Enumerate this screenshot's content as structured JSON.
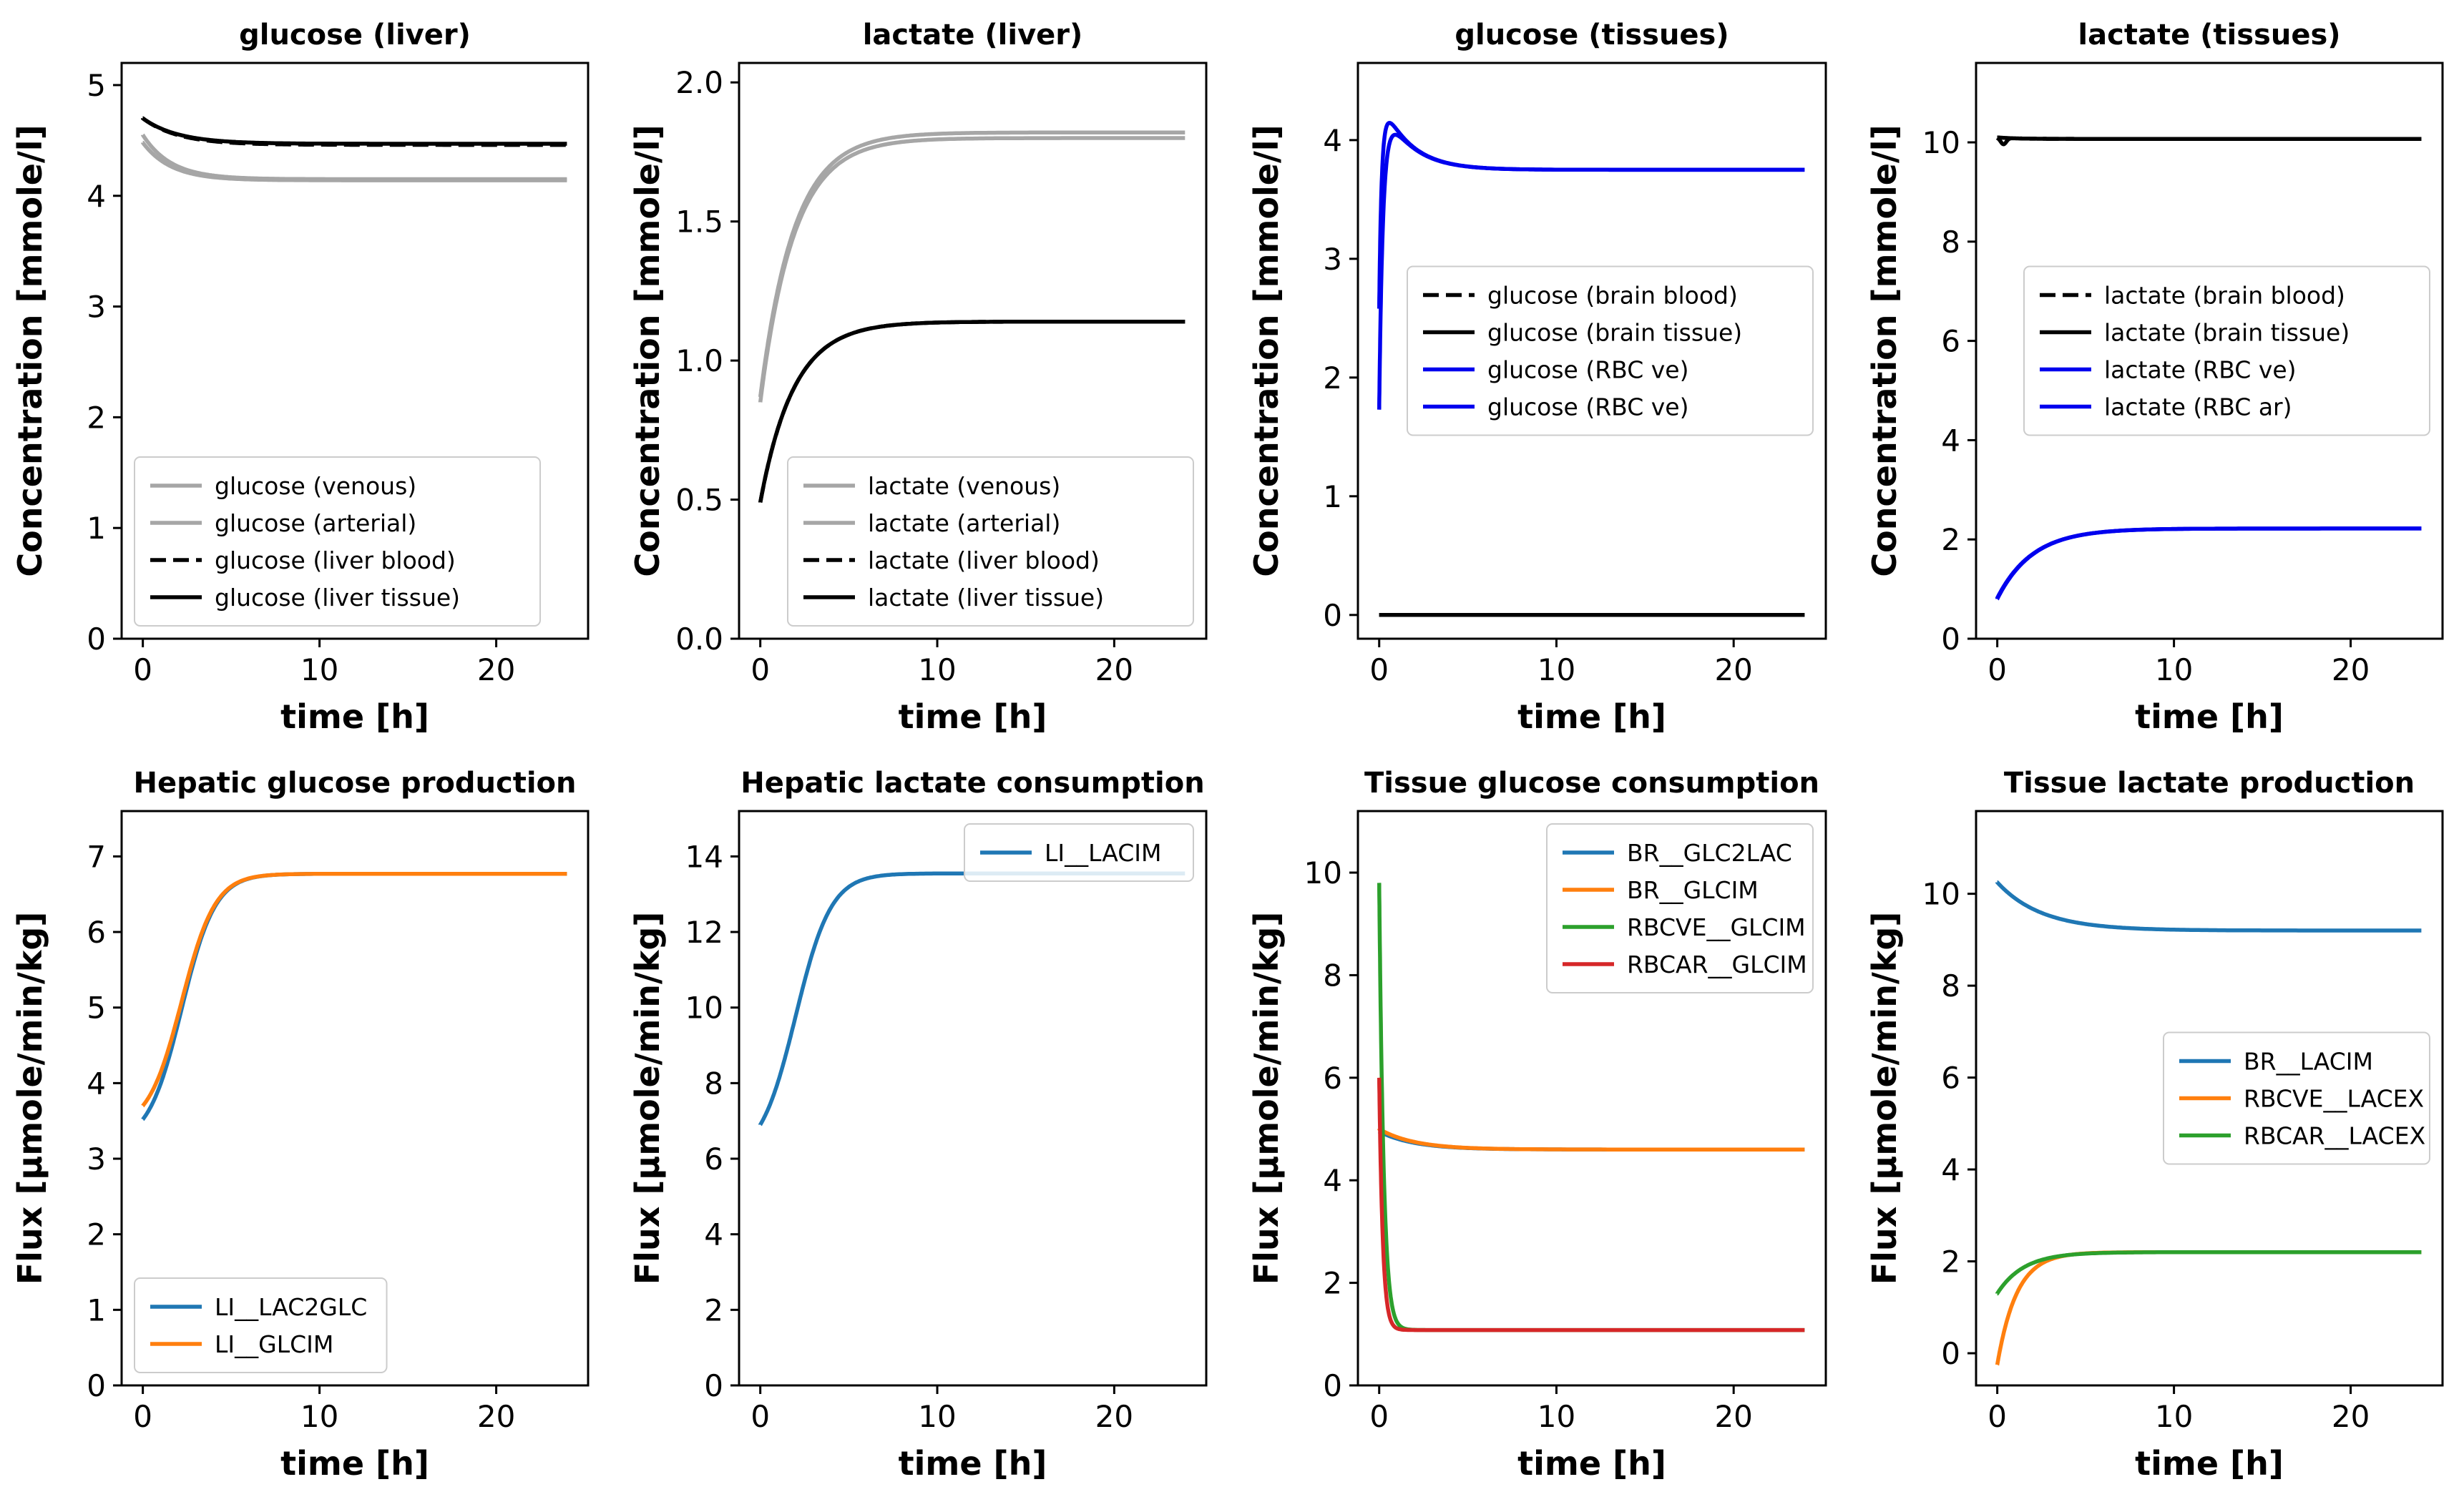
{
  "colors": {
    "gray": "#a6a6a6",
    "black": "#000000",
    "blue": "#0000ee",
    "c_blue": "#1f77b4",
    "c_orange": "#ff7f0e",
    "c_green": "#2ca02c",
    "c_red": "#d62728"
  },
  "chart_data": [
    {
      "type": "line",
      "title": "glucose (liver)",
      "xlabel": "time [h]",
      "ylabel": "Concentration [mmole/l]",
      "xlim": [
        -1.2,
        25.2
      ],
      "ylim": [
        0,
        5.2
      ],
      "xticks": [
        0,
        10,
        20
      ],
      "yticks": [
        0,
        1,
        2,
        3,
        4,
        5
      ],
      "ytick_labels": [
        "0",
        "1",
        "2",
        "3",
        "4",
        "5"
      ],
      "legend_position": "lower-left",
      "series": [
        {
          "name": "glucose (venous)",
          "color": "#a6a6a6",
          "dash": false,
          "start": 4.48,
          "end": 4.14,
          "tau": 1.6
        },
        {
          "name": "glucose (arterial)",
          "color": "#a6a6a6",
          "dash": false,
          "start": 4.55,
          "end": 4.15,
          "tau": 1.6
        },
        {
          "name": "glucose (liver blood)",
          "color": "#000000",
          "dash": true,
          "start": 4.7,
          "end": 4.46,
          "tau": 2.0
        },
        {
          "name": "glucose (liver tissue)",
          "color": "#000000",
          "dash": false,
          "start": 4.7,
          "end": 4.47,
          "tau": 2.0
        }
      ]
    },
    {
      "type": "line",
      "title": "lactate (liver)",
      "xlabel": "time [h]",
      "ylabel": "Concentration [mmole/l]",
      "xlim": [
        -1.2,
        25.2
      ],
      "ylim": [
        0,
        2.07
      ],
      "xticks": [
        0,
        10,
        20
      ],
      "yticks": [
        0,
        0.5,
        1.0,
        1.5,
        2.0
      ],
      "ytick_labels": [
        "0.0",
        "0.5",
        "1.0",
        "1.5",
        "2.0"
      ],
      "legend_position": "lower-right",
      "series": [
        {
          "name": "lactate (venous)",
          "color": "#a6a6a6",
          "dash": false,
          "start": 0.85,
          "end": 1.8,
          "tau": 1.9
        },
        {
          "name": "lactate (arterial)",
          "color": "#a6a6a6",
          "dash": false,
          "start": 0.87,
          "end": 1.82,
          "tau": 1.9
        },
        {
          "name": "lactate (liver blood)",
          "color": "#000000",
          "dash": true,
          "start": 0.49,
          "end": 1.14,
          "tau": 1.9
        },
        {
          "name": "lactate (liver tissue)",
          "color": "#000000",
          "dash": false,
          "start": 0.49,
          "end": 1.14,
          "tau": 1.9
        }
      ]
    },
    {
      "type": "line",
      "title": "glucose (tissues)",
      "xlabel": "time [h]",
      "ylabel": "Concentration [mmole/l]",
      "xlim": [
        -1.2,
        25.2
      ],
      "ylim": [
        -0.2,
        4.65
      ],
      "xticks": [
        0,
        10,
        20
      ],
      "yticks": [
        0,
        1,
        2,
        3,
        4
      ],
      "ytick_labels": [
        "0",
        "1",
        "2",
        "3",
        "4"
      ],
      "legend_position": "center-right",
      "series": [
        {
          "name": "glucose (brain blood)",
          "color": "#000000",
          "dash": true,
          "start": 0.0,
          "end": 0.0,
          "tau": 1.0
        },
        {
          "name": "glucose (brain tissue)",
          "color": "#000000",
          "dash": false,
          "start": 0.0,
          "end": 0.0,
          "tau": 1.0
        },
        {
          "name": "glucose (RBC ve)",
          "color": "#0000ee",
          "dash": false,
          "start": 1.73,
          "end": 3.75,
          "tau": 0.25,
          "bump": 0.28,
          "bump_tau": 1.6
        },
        {
          "name": "glucose (RBC ve)",
          "color": "#0000ee",
          "dash": false,
          "start": 2.58,
          "end": 3.75,
          "tau": 0.18,
          "bump": 0.29,
          "bump_tau": 1.6
        }
      ]
    },
    {
      "type": "line",
      "title": "lactate (tissues)",
      "xlabel": "time [h]",
      "ylabel": "Concentration [mmole/l]",
      "xlim": [
        -1.2,
        25.2
      ],
      "ylim": [
        0,
        11.6
      ],
      "xticks": [
        0,
        10,
        20
      ],
      "yticks": [
        0,
        2,
        4,
        6,
        8,
        10
      ],
      "ytick_labels": [
        "0",
        "2",
        "4",
        "6",
        "8",
        "10"
      ],
      "legend_position": "center-right",
      "series": [
        {
          "name": "lactate (brain blood)",
          "color": "#000000",
          "dash": true,
          "start": 10.1,
          "end": 10.07,
          "tau": 1.0
        },
        {
          "name": "lactate (brain tissue)",
          "color": "#000000",
          "dash": false,
          "start": 10.1,
          "end": 10.07,
          "tau": 1.0,
          "dip": 0.13
        },
        {
          "name": "lactate (RBC ve)",
          "color": "#0000ee",
          "dash": false,
          "start": 0.8,
          "end": 2.22,
          "tau": 2.0
        },
        {
          "name": "lactate (RBC ar)",
          "color": "#0000ee",
          "dash": false,
          "start": 0.82,
          "end": 2.22,
          "tau": 2.0
        }
      ]
    },
    {
      "type": "line",
      "title": "Hepatic glucose production",
      "xlabel": "time [h]",
      "ylabel": "Flux [µmole/min/kg]",
      "xlim": [
        -1.2,
        25.2
      ],
      "ylim": [
        0,
        7.6
      ],
      "xticks": [
        0,
        10,
        20
      ],
      "yticks": [
        0,
        1,
        2,
        3,
        4,
        5,
        6,
        7
      ],
      "ytick_labels": [
        "0",
        "1",
        "2",
        "3",
        "4",
        "5",
        "6",
        "7"
      ],
      "legend_position": "lower-left",
      "series": [
        {
          "name": "LI__LAC2GLC",
          "color": "#1f77b4",
          "dash": false,
          "start": 3.52,
          "end": 6.77,
          "tau": 2.0,
          "sig_mid": 2.2,
          "sig_k": 0.95
        },
        {
          "name": "LI__GLCIM",
          "color": "#ff7f0e",
          "dash": false,
          "start": 3.7,
          "end": 6.77,
          "tau": 2.0,
          "sig_mid": 2.2,
          "sig_k": 0.95
        }
      ]
    },
    {
      "type": "line",
      "title": "Hepatic lactate consumption",
      "xlabel": "time [h]",
      "ylabel": "Flux [µmole/min/kg]",
      "xlim": [
        -1.2,
        25.2
      ],
      "ylim": [
        0,
        15.2
      ],
      "xticks": [
        0,
        10,
        20
      ],
      "yticks": [
        0,
        2,
        4,
        6,
        8,
        10,
        12,
        14
      ],
      "ytick_labels": [
        "0",
        "2",
        "4",
        "6",
        "8",
        "10",
        "12",
        "14"
      ],
      "legend_position": "upper-right",
      "series": [
        {
          "name": "LI__LACIM",
          "color": "#1f77b4",
          "dash": false,
          "start": 6.9,
          "end": 13.55,
          "tau": 2.0,
          "sig_mid": 2.0,
          "sig_k": 1.0
        }
      ]
    },
    {
      "type": "line",
      "title": "Tissue glucose consumption",
      "xlabel": "time [h]",
      "ylabel": "Flux [µmole/min/kg]",
      "xlim": [
        -1.2,
        25.2
      ],
      "ylim": [
        0,
        11.2
      ],
      "xticks": [
        0,
        10,
        20
      ],
      "yticks": [
        0,
        2,
        4,
        6,
        8,
        10
      ],
      "ytick_labels": [
        "0",
        "2",
        "4",
        "6",
        "8",
        "10"
      ],
      "legend_position": "upper-right",
      "series": [
        {
          "name": "BR__GLC2LAC",
          "color": "#1f77b4",
          "dash": false,
          "start": 4.95,
          "end": 4.6,
          "tau": 2.0
        },
        {
          "name": "BR__GLCIM",
          "color": "#ff7f0e",
          "dash": false,
          "start": 5.0,
          "end": 4.6,
          "tau": 2.0
        },
        {
          "name": "RBCVE__GLCIM",
          "color": "#2ca02c",
          "dash": false,
          "start": 9.8,
          "end": 1.08,
          "tau": 0.25
        },
        {
          "name": "RBCAR__GLCIM",
          "color": "#d62728",
          "dash": false,
          "start": 6.0,
          "end": 1.08,
          "tau": 0.2
        }
      ]
    },
    {
      "type": "line",
      "title": "Tissue lactate production",
      "xlabel": "time [h]",
      "ylabel": "Flux [µmole/min/kg]",
      "xlim": [
        -1.2,
        25.2
      ],
      "ylim": [
        -0.7,
        11.8
      ],
      "xticks": [
        0,
        10,
        20
      ],
      "yticks": [
        0,
        2,
        4,
        6,
        8,
        10
      ],
      "ytick_labels": [
        "0",
        "2",
        "4",
        "6",
        "8",
        "10"
      ],
      "legend_position": "center-right",
      "series": [
        {
          "name": "BR__LACIM",
          "color": "#1f77b4",
          "dash": false,
          "start": 10.25,
          "end": 9.2,
          "tau": 2.5
        },
        {
          "name": "RBCVE__LACEX",
          "color": "#ff7f0e",
          "dash": false,
          "start": -0.25,
          "end": 2.2,
          "tau": 1.1
        },
        {
          "name": "RBCAR__LACEX",
          "color": "#2ca02c",
          "dash": false,
          "start": 1.3,
          "end": 2.2,
          "tau": 1.5
        }
      ]
    }
  ]
}
